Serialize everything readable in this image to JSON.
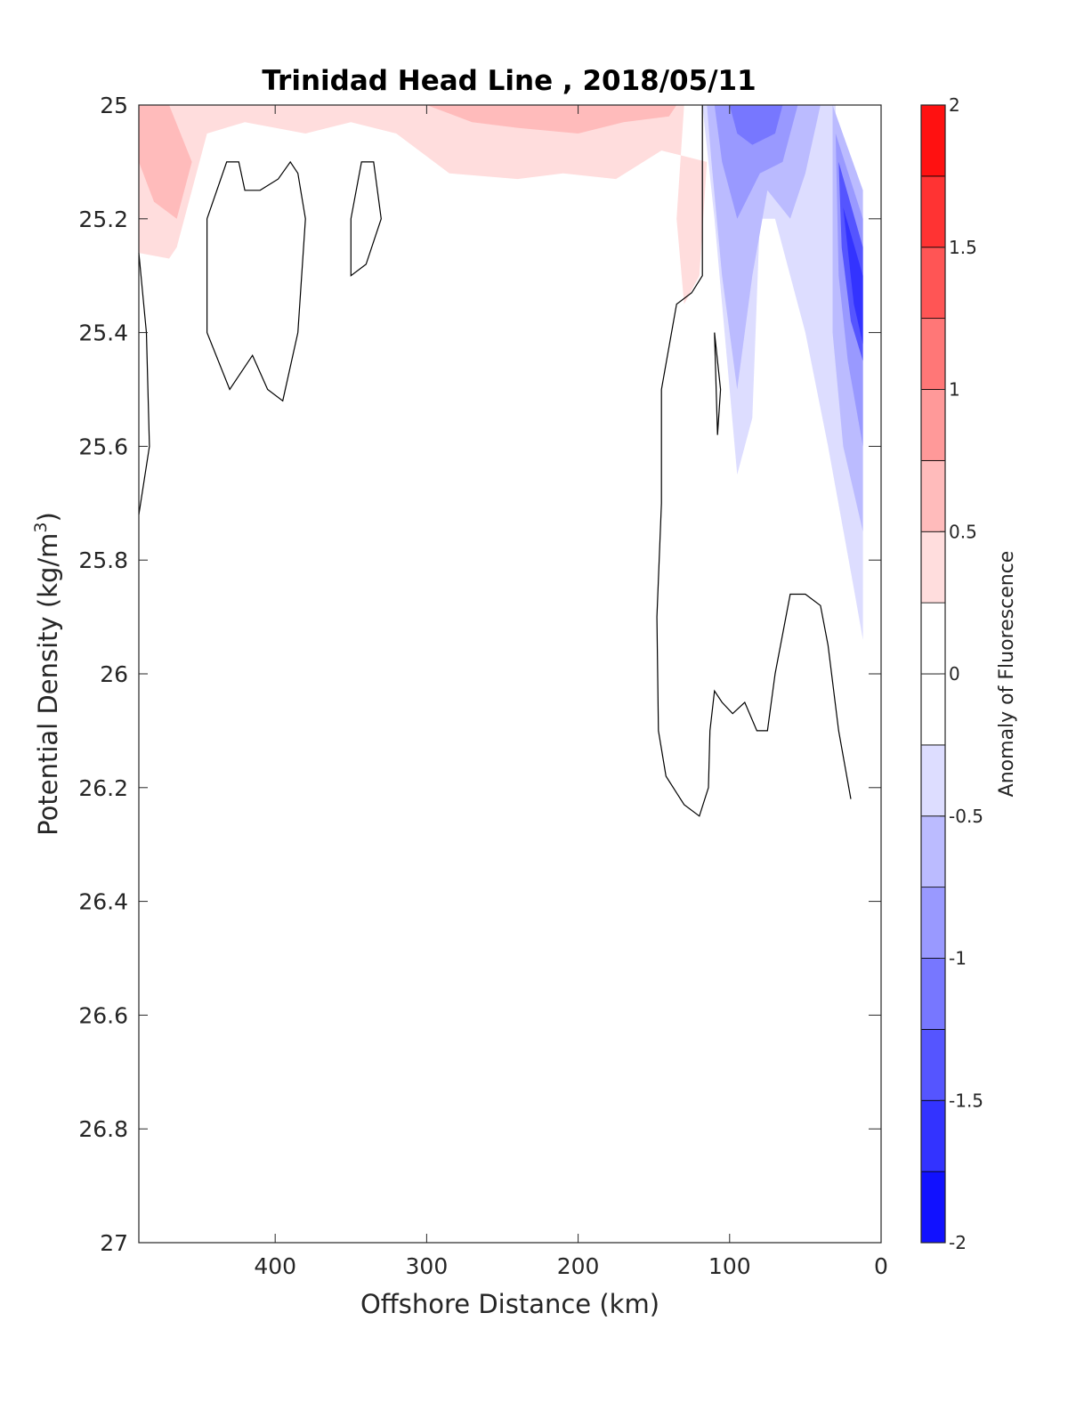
{
  "chart_data": {
    "type": "contour",
    "title": "Trinidad Head Line , 2018/05/11",
    "xlabel": "Offshore Distance (km)",
    "ylabel_main": "Potential Density (kg/m",
    "ylabel_sup": "3",
    "ylabel_close": ")",
    "xlim": [
      490,
      0
    ],
    "x_reversed": true,
    "ylim": [
      25,
      27
    ],
    "y_reversed": true,
    "xticks": [
      400,
      300,
      200,
      100,
      0
    ],
    "yticks": [
      25,
      25.2,
      25.4,
      25.6,
      25.8,
      26,
      26.2,
      26.4,
      26.6,
      26.8,
      27
    ],
    "colorbar": {
      "label": "Anomaly of Fluorescence",
      "range": [
        -2,
        2
      ],
      "level_step": 0.25,
      "ticks": [
        2,
        1.5,
        1,
        0.5,
        0,
        -0.5,
        -1,
        -1.5,
        -2
      ],
      "tick_labels": [
        "2",
        "1.5",
        "1",
        "0.5",
        "0",
        "-0.5",
        "-1",
        "-1.5",
        "-2"
      ]
    },
    "filled_regions": [
      {
        "level": 0.25,
        "points": [
          [
            490,
            25
          ],
          [
            130,
            25
          ],
          [
            135,
            25.2
          ],
          [
            130,
            25.35
          ],
          [
            120,
            25.3
          ],
          [
            115,
            25.1
          ],
          [
            145,
            25.08
          ],
          [
            175,
            25.13
          ],
          [
            210,
            25.12
          ],
          [
            240,
            25.13
          ],
          [
            285,
            25.12
          ],
          [
            320,
            25.05
          ],
          [
            350,
            25.03
          ],
          [
            380,
            25.05
          ],
          [
            420,
            25.03
          ],
          [
            445,
            25.05
          ],
          [
            465,
            25.25
          ],
          [
            480,
            25.22
          ],
          [
            490,
            25.2
          ]
        ]
      },
      {
        "level": 0.25,
        "points": [
          [
            490,
            25
          ],
          [
            455,
            25
          ],
          [
            465,
            25.25
          ],
          [
            470,
            25.27
          ],
          [
            490,
            25.26
          ]
        ]
      },
      {
        "level": 0.5,
        "points": [
          [
            490,
            25
          ],
          [
            470,
            25
          ],
          [
            455,
            25.1
          ],
          [
            465,
            25.2
          ],
          [
            480,
            25.17
          ],
          [
            490,
            25.1
          ]
        ]
      },
      {
        "level": 0.5,
        "points": [
          [
            300,
            25
          ],
          [
            135,
            25
          ],
          [
            140,
            25.02
          ],
          [
            170,
            25.03
          ],
          [
            200,
            25.05
          ],
          [
            240,
            25.04
          ],
          [
            270,
            25.03
          ]
        ]
      },
      {
        "level": -0.25,
        "points": [
          [
            118,
            25
          ],
          [
            30,
            25
          ],
          [
            30,
            25.1
          ],
          [
            12,
            25.2
          ],
          [
            12,
            25.94
          ],
          [
            18,
            25.85
          ],
          [
            35,
            25.6
          ],
          [
            50,
            25.4
          ],
          [
            70,
            25.2
          ],
          [
            80,
            25.2
          ],
          [
            85,
            25.55
          ],
          [
            95,
            25.65
          ],
          [
            110,
            25.2
          ],
          [
            116,
            25.05
          ]
        ]
      },
      {
        "level": -0.5,
        "points": [
          [
            115,
            25
          ],
          [
            40,
            25
          ],
          [
            50,
            25.12
          ],
          [
            60,
            25.2
          ],
          [
            75,
            25.15
          ],
          [
            85,
            25.3
          ],
          [
            95,
            25.5
          ],
          [
            105,
            25.3
          ],
          [
            112,
            25.1
          ]
        ]
      },
      {
        "level": -0.5,
        "points": [
          [
            32,
            25
          ],
          [
            12,
            25.15
          ],
          [
            12,
            25.75
          ],
          [
            25,
            25.6
          ],
          [
            32,
            25.4
          ]
        ]
      },
      {
        "level": -0.75,
        "points": [
          [
            110,
            25
          ],
          [
            55,
            25
          ],
          [
            65,
            25.1
          ],
          [
            80,
            25.12
          ],
          [
            95,
            25.2
          ],
          [
            105,
            25.1
          ]
        ]
      },
      {
        "level": -0.75,
        "points": [
          [
            30,
            25.05
          ],
          [
            12,
            25.2
          ],
          [
            12,
            25.6
          ],
          [
            22,
            25.45
          ],
          [
            28,
            25.3
          ]
        ]
      },
      {
        "level": -1.0,
        "points": [
          [
            100,
            25
          ],
          [
            65,
            25
          ],
          [
            70,
            25.05
          ],
          [
            85,
            25.07
          ],
          [
            95,
            25.05
          ]
        ]
      },
      {
        "level": -1.25,
        "points": [
          [
            28,
            25.1
          ],
          [
            12,
            25.25
          ],
          [
            12,
            25.45
          ],
          [
            20,
            25.38
          ],
          [
            26,
            25.25
          ]
        ]
      },
      {
        "level": -1.5,
        "points": [
          [
            25,
            25.18
          ],
          [
            12,
            25.3
          ],
          [
            12,
            25.42
          ],
          [
            18,
            25.35
          ]
        ]
      }
    ],
    "contour_lines": [
      [
        [
          490,
          25.26
        ],
        [
          485,
          25.4
        ],
        [
          483,
          25.6
        ],
        [
          490,
          25.72
        ]
      ],
      [
        [
          445,
          25.2
        ],
        [
          432,
          25.1
        ],
        [
          424,
          25.1
        ],
        [
          420,
          25.15
        ],
        [
          410,
          25.15
        ],
        [
          398,
          25.13
        ],
        [
          390,
          25.1
        ],
        [
          385,
          25.12
        ],
        [
          380,
          25.2
        ],
        [
          385,
          25.4
        ],
        [
          395,
          25.52
        ],
        [
          405,
          25.5
        ],
        [
          415,
          25.44
        ],
        [
          430,
          25.5
        ],
        [
          445,
          25.4
        ],
        [
          445,
          25.2
        ]
      ],
      [
        [
          350,
          25.2
        ],
        [
          343,
          25.1
        ],
        [
          335,
          25.1
        ],
        [
          330,
          25.2
        ],
        [
          340,
          25.28
        ],
        [
          350,
          25.3
        ],
        [
          350,
          25.2
        ]
      ],
      [
        [
          118,
          25
        ],
        [
          118,
          25.3
        ],
        [
          125,
          25.33
        ],
        [
          135,
          25.35
        ],
        [
          145,
          25.5
        ],
        [
          145,
          25.7
        ],
        [
          148,
          25.9
        ],
        [
          147,
          26.1
        ],
        [
          142,
          26.18
        ],
        [
          130,
          26.23
        ],
        [
          120,
          26.25
        ],
        [
          114,
          26.2
        ],
        [
          113,
          26.1
        ],
        [
          110,
          26.03
        ],
        [
          105,
          26.05
        ],
        [
          98,
          26.07
        ],
        [
          90,
          26.05
        ],
        [
          82,
          26.1
        ],
        [
          75,
          26.1
        ],
        [
          70,
          26
        ],
        [
          60,
          25.86
        ],
        [
          50,
          25.86
        ],
        [
          40,
          25.88
        ],
        [
          35,
          25.95
        ],
        [
          28,
          26.1
        ],
        [
          20,
          26.22
        ]
      ],
      [
        [
          110,
          25.4
        ],
        [
          108,
          25.45
        ],
        [
          106,
          25.5
        ],
        [
          108,
          25.58
        ],
        [
          110,
          25.4
        ]
      ]
    ]
  }
}
